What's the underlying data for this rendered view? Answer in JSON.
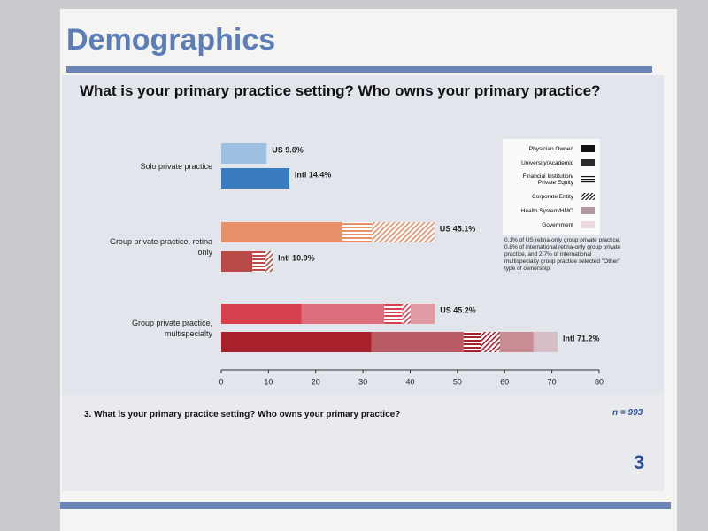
{
  "page_title": "Demographics",
  "chart_data": {
    "type": "stacked-bar-horizontal",
    "title": "What is your primary practice setting? Who owns your primary practice?",
    "categories": [
      "Solo private practice",
      null,
      "Group private practice, retina only",
      null,
      "Group private practice, multispecialty",
      null
    ],
    "bar_colors": [
      "#9dbfe2",
      "#3a7cc0",
      "#e8906a",
      "#b94a48",
      "#d8404f",
      "#a8202c"
    ],
    "series": [
      {
        "name": "Physician Owned",
        "color": "#111111",
        "pattern": "solid",
        "values": [
          9.6,
          14.4,
          25.6,
          6.6,
          17.0,
          31.8
        ]
      },
      {
        "name": "University/Academic",
        "color": "#2b2b2b",
        "pattern": "tint",
        "values": [
          null,
          null,
          null,
          null,
          17.5,
          19.5
        ]
      },
      {
        "name": "Financial Institution/ Private Equity",
        "color": "#111111",
        "pattern": "hlines",
        "values": [
          null,
          null,
          6.3,
          2.8,
          3.8,
          3.6
        ]
      },
      {
        "name": "Corporate Entity",
        "color": "#111111",
        "pattern": "diag",
        "values": [
          null,
          null,
          13.2,
          1.5,
          1.8,
          4.1
        ]
      },
      {
        "name": "Health System/HMO",
        "color": "#b09aa0",
        "pattern": "light",
        "values": [
          null,
          null,
          null,
          null,
          5.1,
          7.1
        ]
      },
      {
        "name": "Government",
        "color": "#eadadd",
        "pattern": "pale",
        "values": [
          null,
          null,
          null,
          null,
          null,
          5.1
        ]
      }
    ],
    "totals": [
      9.6,
      14.4,
      45.1,
      10.9,
      45.2,
      71.2
    ],
    "value_labels": [
      "US 9.6%",
      "Intl 14.4%",
      "US 45.1%",
      "Intl 10.9%",
      "US 45.2%",
      "Intl 71.2%"
    ],
    "xlim": [
      0,
      80
    ],
    "xticks": [
      0,
      10,
      20,
      30,
      40,
      50,
      60,
      70,
      80
    ],
    "note": "0.1% of US retina-only group private practice, 0.8% of international retina-only group private practice, and 2.7% of international multispecialty group practice selected \"Other\" type of ownership."
  },
  "footer": {
    "question": "3. What is your primary practice setting? Who owns your primary practice?",
    "n": "n = 993",
    "page_number": "3"
  }
}
